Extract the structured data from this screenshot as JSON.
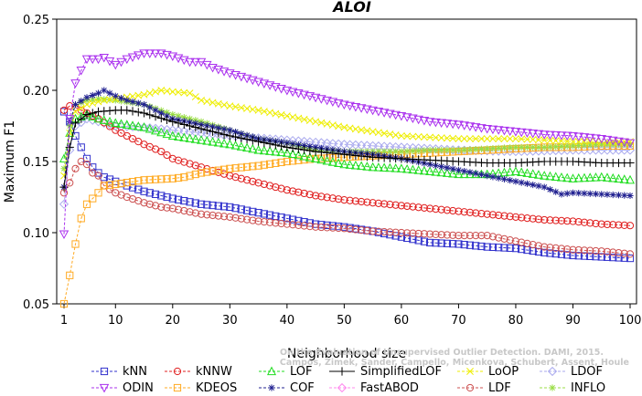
{
  "chart_data": {
    "type": "line",
    "title": "ALOI",
    "xlabel": "Neighborhood size",
    "ylabel": "Maximum F1",
    "xlim": [
      0,
      100
    ],
    "ylim": [
      0.05,
      0.25
    ],
    "xticks": [
      1,
      10,
      20,
      30,
      40,
      50,
      60,
      70,
      80,
      90,
      100
    ],
    "yticks": [
      0.05,
      0.1,
      0.15,
      0.2,
      0.25
    ],
    "ytick_labels": [
      "0.05",
      "0.10",
      "0.15",
      "0.20",
      "0.25"
    ],
    "legend_position": "bottom",
    "watermark": [
      "Campos, Zimek, Sander, Campello, Micenkova, Schubert, Assent, Houle",
      "On the Evaluation of Unsupervised Outlier Detection. DAMI, 2015."
    ],
    "series": [
      {
        "name": "kNN",
        "color": "#3030cc",
        "marker": "square",
        "points": [
          [
            1,
            0.185
          ],
          [
            2,
            0.178
          ],
          [
            3,
            0.168
          ],
          [
            4,
            0.16
          ],
          [
            5,
            0.152
          ],
          [
            6,
            0.146
          ],
          [
            7,
            0.142
          ],
          [
            8,
            0.139
          ],
          [
            10,
            0.136
          ],
          [
            12,
            0.133
          ],
          [
            15,
            0.129
          ],
          [
            18,
            0.126
          ],
          [
            20,
            0.124
          ],
          [
            25,
            0.12
          ],
          [
            30,
            0.118
          ],
          [
            35,
            0.114
          ],
          [
            40,
            0.11
          ],
          [
            45,
            0.106
          ],
          [
            50,
            0.104
          ],
          [
            55,
            0.101
          ],
          [
            60,
            0.097
          ],
          [
            65,
            0.093
          ],
          [
            70,
            0.092
          ],
          [
            75,
            0.09
          ],
          [
            80,
            0.089
          ],
          [
            85,
            0.086
          ],
          [
            90,
            0.084
          ],
          [
            95,
            0.083
          ],
          [
            100,
            0.082
          ]
        ]
      },
      {
        "name": "kNNW",
        "color": "#e02020",
        "marker": "circle",
        "points": [
          [
            1,
            0.186
          ],
          [
            2,
            0.189
          ],
          [
            3,
            0.188
          ],
          [
            5,
            0.184
          ],
          [
            7,
            0.18
          ],
          [
            10,
            0.172
          ],
          [
            12,
            0.168
          ],
          [
            15,
            0.162
          ],
          [
            18,
            0.157
          ],
          [
            20,
            0.152
          ],
          [
            25,
            0.146
          ],
          [
            30,
            0.14
          ],
          [
            35,
            0.135
          ],
          [
            40,
            0.13
          ],
          [
            45,
            0.126
          ],
          [
            50,
            0.123
          ],
          [
            55,
            0.121
          ],
          [
            60,
            0.119
          ],
          [
            65,
            0.117
          ],
          [
            70,
            0.115
          ],
          [
            75,
            0.113
          ],
          [
            80,
            0.111
          ],
          [
            85,
            0.109
          ],
          [
            90,
            0.108
          ],
          [
            95,
            0.106
          ],
          [
            100,
            0.105
          ]
        ]
      },
      {
        "name": "LOF",
        "color": "#22dd22",
        "marker": "triangle-up",
        "points": [
          [
            1,
            0.152
          ],
          [
            2,
            0.17
          ],
          [
            3,
            0.18
          ],
          [
            5,
            0.183
          ],
          [
            7,
            0.18
          ],
          [
            10,
            0.177
          ],
          [
            15,
            0.174
          ],
          [
            20,
            0.168
          ],
          [
            25,
            0.165
          ],
          [
            30,
            0.162
          ],
          [
            35,
            0.158
          ],
          [
            40,
            0.156
          ],
          [
            45,
            0.152
          ],
          [
            50,
            0.148
          ],
          [
            55,
            0.146
          ],
          [
            60,
            0.145
          ],
          [
            65,
            0.143
          ],
          [
            70,
            0.141
          ],
          [
            75,
            0.141
          ],
          [
            80,
            0.143
          ],
          [
            85,
            0.14
          ],
          [
            90,
            0.138
          ],
          [
            95,
            0.139
          ],
          [
            100,
            0.137
          ]
        ]
      },
      {
        "name": "SimplifiedLOF",
        "color": "#000000",
        "marker": "plus",
        "points": [
          [
            1,
            0.132
          ],
          [
            2,
            0.16
          ],
          [
            3,
            0.177
          ],
          [
            5,
            0.183
          ],
          [
            7,
            0.185
          ],
          [
            10,
            0.186
          ],
          [
            12,
            0.186
          ],
          [
            15,
            0.184
          ],
          [
            20,
            0.178
          ],
          [
            25,
            0.173
          ],
          [
            30,
            0.168
          ],
          [
            35,
            0.164
          ],
          [
            40,
            0.16
          ],
          [
            45,
            0.157
          ],
          [
            50,
            0.155
          ],
          [
            55,
            0.153
          ],
          [
            60,
            0.152
          ],
          [
            65,
            0.151
          ],
          [
            70,
            0.15
          ],
          [
            75,
            0.149
          ],
          [
            80,
            0.149
          ],
          [
            85,
            0.15
          ],
          [
            90,
            0.15
          ],
          [
            95,
            0.149
          ],
          [
            100,
            0.149
          ]
        ]
      },
      {
        "name": "LoOP",
        "color": "#eeee00",
        "marker": "x",
        "points": [
          [
            1,
            0.14
          ],
          [
            2,
            0.17
          ],
          [
            3,
            0.185
          ],
          [
            5,
            0.19
          ],
          [
            8,
            0.193
          ],
          [
            10,
            0.194
          ],
          [
            15,
            0.197
          ],
          [
            18,
            0.2
          ],
          [
            20,
            0.199
          ],
          [
            23,
            0.198
          ],
          [
            25,
            0.193
          ],
          [
            30,
            0.189
          ],
          [
            35,
            0.186
          ],
          [
            40,
            0.182
          ],
          [
            45,
            0.178
          ],
          [
            50,
            0.174
          ],
          [
            55,
            0.171
          ],
          [
            60,
            0.168
          ],
          [
            65,
            0.167
          ],
          [
            70,
            0.166
          ],
          [
            75,
            0.166
          ],
          [
            80,
            0.166
          ],
          [
            85,
            0.165
          ],
          [
            90,
            0.164
          ],
          [
            95,
            0.164
          ],
          [
            100,
            0.164
          ]
        ]
      },
      {
        "name": "LDOF",
        "color": "#aaaaee",
        "marker": "diamond",
        "points": [
          [
            1,
            0.12
          ],
          [
            2,
            0.158
          ],
          [
            3,
            0.175
          ],
          [
            5,
            0.18
          ],
          [
            7,
            0.178
          ],
          [
            10,
            0.175
          ],
          [
            15,
            0.174
          ],
          [
            20,
            0.172
          ],
          [
            25,
            0.17
          ],
          [
            30,
            0.168
          ],
          [
            40,
            0.165
          ],
          [
            50,
            0.162
          ],
          [
            60,
            0.16
          ],
          [
            70,
            0.158
          ],
          [
            80,
            0.157
          ],
          [
            90,
            0.158
          ],
          [
            100,
            0.158
          ]
        ]
      },
      {
        "name": "ODIN",
        "color": "#aa30ee",
        "marker": "triangle-down",
        "points": [
          [
            1,
            0.099
          ],
          [
            2,
            0.18
          ],
          [
            3,
            0.205
          ],
          [
            4,
            0.214
          ],
          [
            5,
            0.222
          ],
          [
            7,
            0.222
          ],
          [
            8,
            0.223
          ],
          [
            10,
            0.218
          ],
          [
            12,
            0.222
          ],
          [
            15,
            0.226
          ],
          [
            18,
            0.226
          ],
          [
            20,
            0.224
          ],
          [
            23,
            0.22
          ],
          [
            25,
            0.22
          ],
          [
            27,
            0.216
          ],
          [
            30,
            0.212
          ],
          [
            35,
            0.206
          ],
          [
            40,
            0.2
          ],
          [
            45,
            0.195
          ],
          [
            50,
            0.19
          ],
          [
            55,
            0.186
          ],
          [
            60,
            0.182
          ],
          [
            65,
            0.178
          ],
          [
            70,
            0.176
          ],
          [
            75,
            0.173
          ],
          [
            80,
            0.171
          ],
          [
            85,
            0.169
          ],
          [
            90,
            0.168
          ],
          [
            95,
            0.166
          ],
          [
            100,
            0.163
          ]
        ]
      },
      {
        "name": "KDEOS",
        "color": "#ffaa22",
        "marker": "square",
        "points": [
          [
            1,
            0.05
          ],
          [
            2,
            0.07
          ],
          [
            3,
            0.092
          ],
          [
            4,
            0.11
          ],
          [
            5,
            0.12
          ],
          [
            7,
            0.128
          ],
          [
            8,
            0.133
          ],
          [
            10,
            0.134
          ],
          [
            15,
            0.137
          ],
          [
            20,
            0.138
          ],
          [
            22,
            0.139
          ],
          [
            25,
            0.142
          ],
          [
            30,
            0.145
          ],
          [
            35,
            0.147
          ],
          [
            40,
            0.15
          ],
          [
            45,
            0.152
          ],
          [
            50,
            0.153
          ],
          [
            55,
            0.154
          ],
          [
            60,
            0.155
          ],
          [
            65,
            0.156
          ],
          [
            70,
            0.157
          ],
          [
            75,
            0.158
          ],
          [
            80,
            0.159
          ],
          [
            85,
            0.16
          ],
          [
            90,
            0.16
          ],
          [
            95,
            0.161
          ],
          [
            100,
            0.161
          ]
        ]
      },
      {
        "name": "COF",
        "color": "#202090",
        "marker": "star",
        "points": [
          [
            1,
            0.132
          ],
          [
            2,
            0.178
          ],
          [
            3,
            0.19
          ],
          [
            5,
            0.195
          ],
          [
            7,
            0.198
          ],
          [
            8,
            0.2
          ],
          [
            10,
            0.196
          ],
          [
            12,
            0.193
          ],
          [
            15,
            0.19
          ],
          [
            20,
            0.18
          ],
          [
            25,
            0.176
          ],
          [
            30,
            0.172
          ],
          [
            35,
            0.166
          ],
          [
            40,
            0.163
          ],
          [
            45,
            0.16
          ],
          [
            50,
            0.157
          ],
          [
            55,
            0.155
          ],
          [
            60,
            0.152
          ],
          [
            65,
            0.148
          ],
          [
            70,
            0.144
          ],
          [
            75,
            0.14
          ],
          [
            80,
            0.136
          ],
          [
            85,
            0.132
          ],
          [
            88,
            0.127
          ],
          [
            90,
            0.128
          ],
          [
            95,
            0.127
          ],
          [
            100,
            0.126
          ]
        ]
      },
      {
        "name": "FastABOD",
        "color": "#ff88ee",
        "marker": "diamond",
        "points": []
      },
      {
        "name": "LDF",
        "color": "#cc5050",
        "marker": "circle",
        "points": [
          [
            1,
            0.128
          ],
          [
            2,
            0.135
          ],
          [
            3,
            0.145
          ],
          [
            4,
            0.15
          ],
          [
            5,
            0.148
          ],
          [
            6,
            0.142
          ],
          [
            7,
            0.14
          ],
          [
            8,
            0.133
          ],
          [
            10,
            0.128
          ],
          [
            12,
            0.125
          ],
          [
            15,
            0.121
          ],
          [
            18,
            0.118
          ],
          [
            20,
            0.117
          ],
          [
            25,
            0.113
          ],
          [
            30,
            0.111
          ],
          [
            35,
            0.108
          ],
          [
            40,
            0.106
          ],
          [
            45,
            0.104
          ],
          [
            50,
            0.103
          ],
          [
            55,
            0.101
          ],
          [
            60,
            0.1
          ],
          [
            65,
            0.099
          ],
          [
            70,
            0.098
          ],
          [
            75,
            0.098
          ],
          [
            80,
            0.094
          ],
          [
            85,
            0.09
          ],
          [
            90,
            0.088
          ],
          [
            95,
            0.087
          ],
          [
            100,
            0.085
          ]
        ]
      },
      {
        "name": "INFLO",
        "color": "#99dd44",
        "marker": "star",
        "points": [
          [
            1,
            0.145
          ],
          [
            2,
            0.175
          ],
          [
            3,
            0.19
          ],
          [
            5,
            0.193
          ],
          [
            7,
            0.194
          ],
          [
            10,
            0.193
          ],
          [
            15,
            0.19
          ],
          [
            20,
            0.183
          ],
          [
            25,
            0.178
          ],
          [
            30,
            0.172
          ],
          [
            35,
            0.166
          ],
          [
            40,
            0.163
          ],
          [
            45,
            0.158
          ],
          [
            50,
            0.157
          ],
          [
            55,
            0.157
          ],
          [
            60,
            0.157
          ],
          [
            65,
            0.158
          ],
          [
            70,
            0.158
          ],
          [
            75,
            0.159
          ],
          [
            80,
            0.16
          ],
          [
            85,
            0.16
          ],
          [
            90,
            0.161
          ],
          [
            95,
            0.162
          ],
          [
            100,
            0.162
          ]
        ]
      }
    ]
  }
}
